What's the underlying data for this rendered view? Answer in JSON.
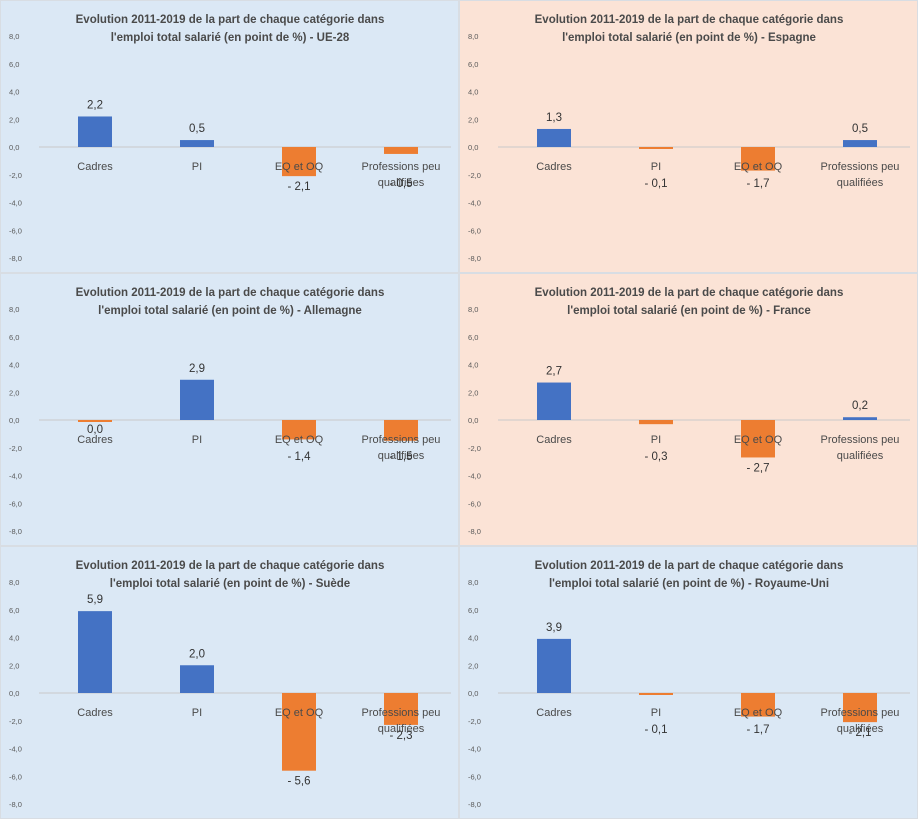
{
  "chart_data": [
    {
      "type": "bar",
      "title_lines": [
        "Evolution 2011-2019 de la part de chaque catégorie dans",
        "l'emploi total salarié (en point de %) - UE-28"
      ],
      "categories": [
        "Cadres",
        "PI",
        "EQ et OQ",
        "Professions peu qualifiées"
      ],
      "category_lines": [
        [
          "Cadres"
        ],
        [
          "PI"
        ],
        [
          "EQ et OQ"
        ],
        [
          "Professions peu",
          "qualifiées"
        ]
      ],
      "values": [
        2.2,
        0.5,
        -2.1,
        -0.5
      ],
      "value_labels": [
        "2,2",
        "0,5",
        "- 2,1",
        "- 0,5"
      ],
      "ylim": [
        -8,
        8
      ],
      "yticks": [
        "8,0",
        "6,0",
        "4,0",
        "2,0",
        "0,0",
        "-2,0",
        "-4,0",
        "-6,0",
        "-8,0"
      ],
      "background": "#dbe8f5"
    },
    {
      "type": "bar",
      "title_lines": [
        "Evolution 2011-2019 de la part de chaque catégorie dans",
        "l'emploi total salarié (en point de %) -  Espagne"
      ],
      "categories": [
        "Cadres",
        "PI",
        "EQ et OQ",
        "Professions peu qualifiées"
      ],
      "category_lines": [
        [
          "Cadres"
        ],
        [
          "PI"
        ],
        [
          "EQ et OQ"
        ],
        [
          "Professions peu",
          "qualifiées"
        ]
      ],
      "values": [
        1.3,
        -0.1,
        -1.7,
        0.5
      ],
      "value_labels": [
        "1,3",
        "- 0,1",
        "- 1,7",
        "0,5"
      ],
      "ylim": [
        -8,
        8
      ],
      "yticks": [
        "8,0",
        "6,0",
        "4,0",
        "2,0",
        "0,0",
        "-2,0",
        "-4,0",
        "-6,0",
        "-8,0"
      ],
      "background": "#fbe3d6"
    },
    {
      "type": "bar",
      "title_lines": [
        "Evolution 2011-2019 de la part de chaque catégorie dans",
        "l'emploi total salarié (en point de %) -  Allemagne"
      ],
      "categories": [
        "Cadres",
        "PI",
        "EQ et OQ",
        "Professions peu qualifiées"
      ],
      "category_lines": [
        [
          "Cadres"
        ],
        [
          "PI"
        ],
        [
          "EQ et OQ"
        ],
        [
          "Professions peu",
          "qualifiées"
        ]
      ],
      "values": [
        -0.0,
        2.9,
        -1.4,
        -1.5
      ],
      "value_labels": [
        "0,0",
        "2,9",
        "- 1,4",
        "- 1,5"
      ],
      "ylim": [
        -8,
        8
      ],
      "yticks": [
        "8,0",
        "6,0",
        "4,0",
        "2,0",
        "0,0",
        "-2,0",
        "-4,0",
        "-6,0",
        "-8,0"
      ],
      "background": "#dbe8f5"
    },
    {
      "type": "bar",
      "title_lines": [
        "Evolution 2011-2019 de la part de chaque catégorie dans",
        "l'emploi total salarié (en point de %) -  France"
      ],
      "categories": [
        "Cadres",
        "PI",
        "EQ et OQ",
        "Professions peu qualifiées"
      ],
      "category_lines": [
        [
          "Cadres"
        ],
        [
          "PI"
        ],
        [
          "EQ et OQ"
        ],
        [
          "Professions peu",
          "qualifiées"
        ]
      ],
      "values": [
        2.7,
        -0.3,
        -2.7,
        0.2
      ],
      "value_labels": [
        "2,7",
        "- 0,3",
        "- 2,7",
        "0,2"
      ],
      "ylim": [
        -8,
        8
      ],
      "yticks": [
        "8,0",
        "6,0",
        "4,0",
        "2,0",
        "0,0",
        "-2,0",
        "-4,0",
        "-6,0",
        "-8,0"
      ],
      "background": "#fbe3d6"
    },
    {
      "type": "bar",
      "title_lines": [
        "Evolution 2011-2019 de la part de chaque catégorie dans",
        "l'emploi total salarié (en point de %) -  Suède"
      ],
      "categories": [
        "Cadres",
        "PI",
        "EQ et OQ",
        "Professions peu qualifiées"
      ],
      "category_lines": [
        [
          "Cadres"
        ],
        [
          "PI"
        ],
        [
          "EQ et OQ"
        ],
        [
          "Professions peu",
          "qualifiées"
        ]
      ],
      "values": [
        5.9,
        2.0,
        -5.6,
        -2.3
      ],
      "value_labels": [
        "5,9",
        "2,0",
        "- 5,6",
        "- 2,3"
      ],
      "ylim": [
        -8,
        8
      ],
      "yticks": [
        "8,0",
        "6,0",
        "4,0",
        "2,0",
        "0,0",
        "-2,0",
        "-4,0",
        "-6,0",
        "-8,0"
      ],
      "background": "#dbe8f5"
    },
    {
      "type": "bar",
      "title_lines": [
        "Evolution 2011-2019 de la part de chaque catégorie dans",
        "l'emploi total salarié (en point de %) -  Royaume-Uni"
      ],
      "categories": [
        "Cadres",
        "PI",
        "EQ et OQ",
        "Professions peu qualifiées"
      ],
      "category_lines": [
        [
          "Cadres"
        ],
        [
          "PI"
        ],
        [
          "EQ et OQ"
        ],
        [
          "Professions peu",
          "qualifiées"
        ]
      ],
      "values": [
        3.9,
        -0.1,
        -1.7,
        -2.1
      ],
      "value_labels": [
        "3,9",
        "- 0,1",
        "- 1,7",
        "- 2,1"
      ],
      "ylim": [
        -8,
        8
      ],
      "yticks": [
        "8,0",
        "6,0",
        "4,0",
        "2,0",
        "0,0",
        "-2,0",
        "-4,0",
        "-6,0",
        "-8,0"
      ],
      "background": "#dbe8f5"
    }
  ],
  "colors": {
    "positive": "#4472c4",
    "negative": "#ed7d31",
    "zero_line": "#c9c9c9"
  }
}
